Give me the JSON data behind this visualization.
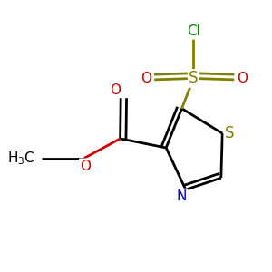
{
  "bg_color": "#ffffff",
  "bond_color": "#000000",
  "S_sul_color": "#808000",
  "S_ring_color": "#808000",
  "N_color": "#0000cc",
  "O_color": "#cc0000",
  "Cl_color": "#008000",
  "line_width": 2.0,
  "dbo": 0.018,
  "figsize": [
    3.0,
    3.0
  ],
  "dpi": 100,
  "xlim": [
    0,
    1
  ],
  "ylim": [
    0,
    1
  ],
  "font_size": 11
}
